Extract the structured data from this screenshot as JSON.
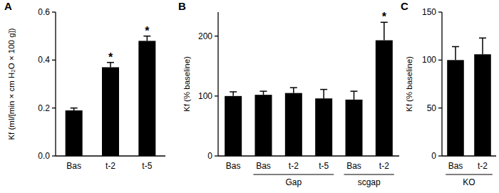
{
  "chart_data": [
    {
      "type": "bar",
      "title": "A",
      "y_label": "Kf (ml/[min × cm H₂O × 100 g])",
      "categories": [
        "Bas",
        "t-2",
        "t-5"
      ],
      "values": [
        0.19,
        0.37,
        0.48
      ],
      "errors": [
        0.01,
        0.02,
        0.02
      ],
      "annotations": [
        null,
        "*",
        "*"
      ],
      "color": "#000000",
      "ylim": [
        0,
        0.6
      ],
      "yticks": [
        {
          "value": 0,
          "label": "0.0"
        },
        {
          "value": 0.2,
          "label": "0.2"
        },
        {
          "value": 0.4,
          "label": "0.4"
        },
        {
          "value": 0.6,
          "label": "0.6"
        }
      ]
    },
    {
      "type": "bar",
      "title": "B",
      "y_label": "Kf (% baseline)",
      "categories": [
        "Bas",
        "Bas",
        "t-2",
        "t-5",
        "Bas",
        "t-2"
      ],
      "values": [
        100,
        102,
        105,
        96,
        94,
        193
      ],
      "errors": [
        7,
        6,
        9,
        15,
        14,
        30
      ],
      "annotations": [
        null,
        null,
        null,
        null,
        null,
        "*"
      ],
      "groups": [
        {
          "label": "Gap",
          "categories": [
            1,
            2,
            3
          ]
        },
        {
          "label": "scgap",
          "categories": [
            4,
            5
          ]
        }
      ],
      "color": "#000000",
      "ylim": [
        0,
        240
      ],
      "yticks": [
        0,
        100,
        200
      ]
    },
    {
      "type": "bar",
      "title": "C",
      "y_label": "Kf (% baseline)",
      "categories": [
        "Bas",
        "t-2"
      ],
      "values": [
        100,
        106
      ],
      "errors": [
        14,
        17
      ],
      "groups": [
        {
          "label": "KO",
          "categories": [
            0,
            1
          ]
        }
      ],
      "color": "#000000",
      "ylim": [
        0,
        150
      ],
      "yticks": [
        0,
        50,
        100,
        150
      ]
    }
  ]
}
